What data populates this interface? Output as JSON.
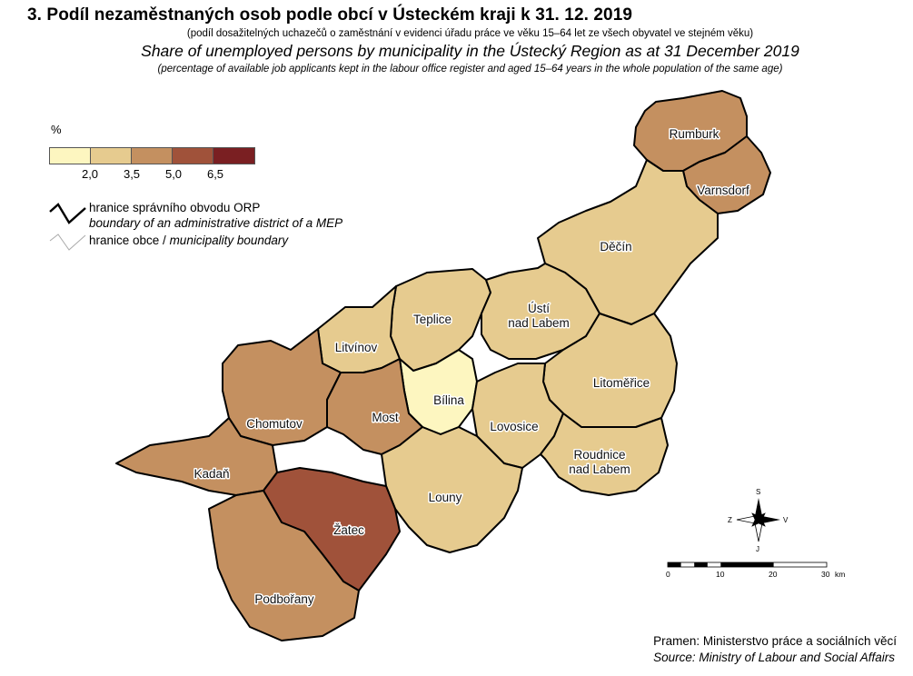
{
  "title_cz": "3. Podíl nezaměstnaných osob podle obcí v Ústeckém kraji k 31. 12. 2019",
  "subtitle_cz": "(podíl dosažitelných uchazečů o zaměstnání v evidenci úřadu práce ve věku 15–64 let ze všech obyvatel ve stejném věku)",
  "title_en": "Share of unemployed persons by municipality in the Ústecký Region as at 31 December 2019",
  "subtitle_en": "(percentage of available job applicants kept in the labour office register and aged 15–64 years in the whole population of the same age)",
  "legend": {
    "unit": "%",
    "classes": [
      "#fdf6c0",
      "#e6cb8f",
      "#c49060",
      "#a0523a",
      "#7a1f22"
    ],
    "breaks": [
      "2,0",
      "3,5",
      "5,0",
      "6,5"
    ],
    "orp_boundary_cz": "hranice správního obvodu ORP",
    "orp_boundary_en": "boundary of an administrative district of a MEP",
    "muni_boundary_cz": "hranice obce / ",
    "muni_boundary_en": "municipality boundary"
  },
  "districts": [
    {
      "name": "Rumburk",
      "class": 2
    },
    {
      "name": "Varnsdorf",
      "class": 2
    },
    {
      "name": "Děčín",
      "class": 1
    },
    {
      "name": "Teplice",
      "class": 1
    },
    {
      "name": "Ústí\nnad Labem",
      "class": 1
    },
    {
      "name": "Litvínov",
      "class": 1
    },
    {
      "name": "Bílina",
      "class": 0
    },
    {
      "name": "Litoměřice",
      "class": 1
    },
    {
      "name": "Chomutov",
      "class": 2
    },
    {
      "name": "Most",
      "class": 2
    },
    {
      "name": "Lovosice",
      "class": 1
    },
    {
      "name": "Kadaň",
      "class": 2
    },
    {
      "name": "Roudnice\nnad Labem",
      "class": 1
    },
    {
      "name": "Louny",
      "class": 1
    },
    {
      "name": "Žatec",
      "class": 3
    },
    {
      "name": "Podbořany",
      "class": 2
    }
  ],
  "compass": {
    "north": "S",
    "south": "J",
    "west": "Z",
    "east": "V"
  },
  "scale": {
    "ticks": [
      "0",
      "10",
      "20",
      "30"
    ],
    "unit": "km"
  },
  "source_cz": "Pramen: Ministerstvo práce a sociálních věcí",
  "source_en": "Source: Ministry of Labour and Social Affairs"
}
